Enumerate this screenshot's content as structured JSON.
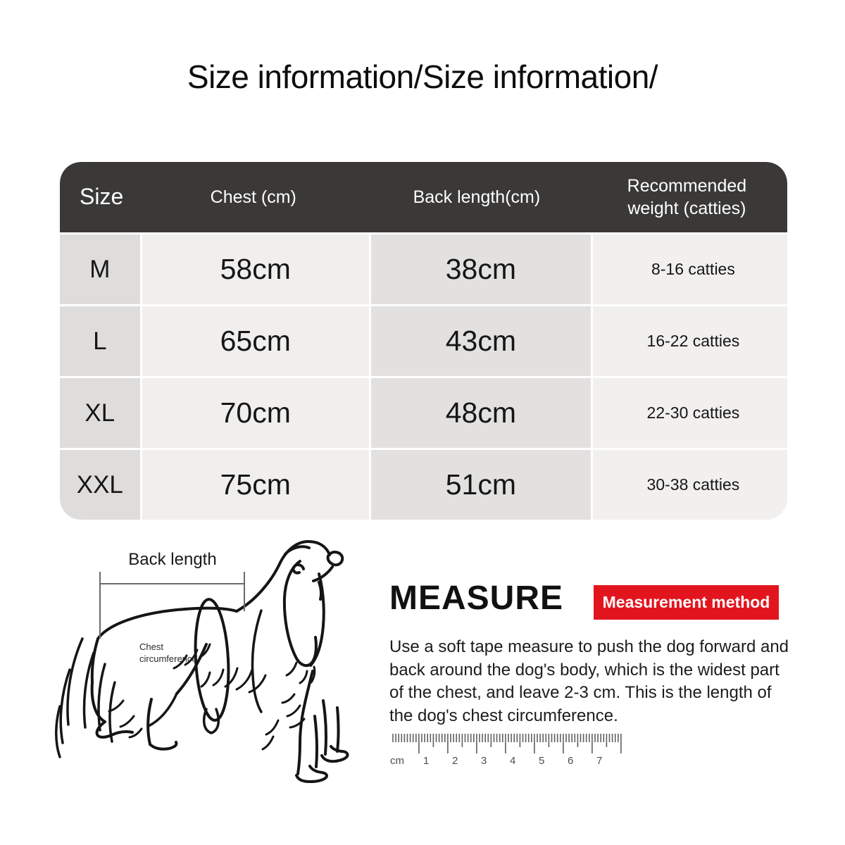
{
  "title": "Size information/Size information/",
  "table": {
    "headers": {
      "size": "Size",
      "chest": "Chest (cm)",
      "back": "Back length(cm)",
      "weight": "Recommended weight (catties)"
    },
    "rows": [
      {
        "size": "M",
        "chest": "58cm",
        "back": "38cm",
        "weight": "8-16 catties"
      },
      {
        "size": "L",
        "chest": "65cm",
        "back": "43cm",
        "weight": "16-22 catties"
      },
      {
        "size": "XL",
        "chest": "70cm",
        "back": "48cm",
        "weight": "22-30 catties"
      },
      {
        "size": "XXL",
        "chest": "75cm",
        "back": "51cm",
        "weight": "30-38 catties"
      }
    ]
  },
  "diagram": {
    "back_length_label": "Back length",
    "chest_label": "Chest\ncircumference"
  },
  "measure": {
    "heading": "MEASURE",
    "badge_label": "Measurement method",
    "description": "Use a soft tape measure to push the dog forward and back around the dog's body, which is the widest part of the chest, and leave 2-3 cm. This is the length of the dog's chest circumference."
  },
  "ruler": {
    "unit": "cm",
    "numbers": [
      "1",
      "2",
      "3",
      "4",
      "5",
      "6",
      "7"
    ]
  },
  "colors": {
    "header_bg": "#3a3938",
    "badge_red": "#e2151e",
    "col_size": "#dedddc",
    "col_chest": "#f0efee",
    "col_back": "#e2e1e0",
    "col_weight": "#f1f0ef"
  }
}
